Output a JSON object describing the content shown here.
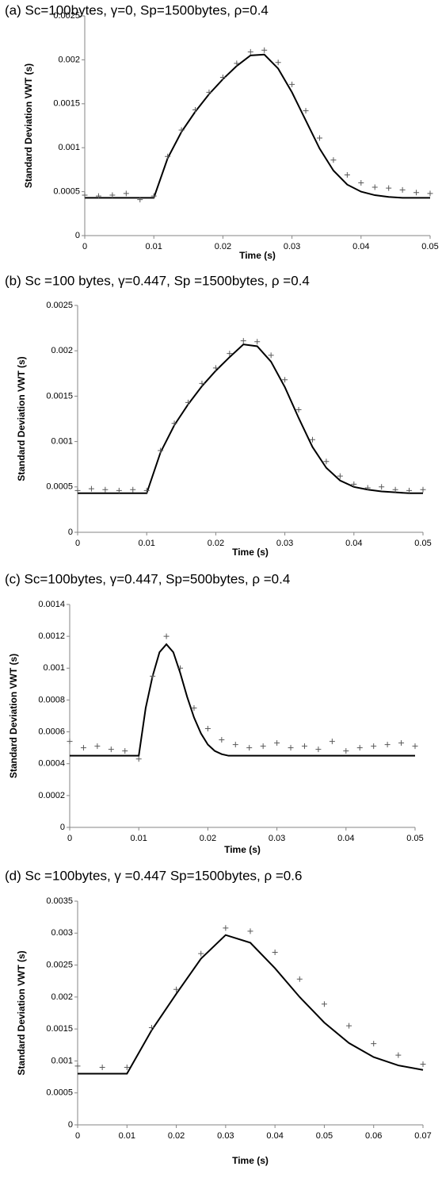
{
  "chart_data": [
    {
      "type": "line",
      "title": "(a)    Sc=100bytes, γ=0, Sp=1500bytes, ρ=0.4",
      "x_label": "Time (s)",
      "y_label": "Standard Deviation VWT (s)",
      "xlim": [
        0,
        0.05
      ],
      "xticks": [
        0,
        0.01,
        0.02,
        0.03,
        0.04,
        0.05
      ],
      "ylim": [
        0,
        0.0025
      ],
      "yticks": [
        0,
        0.0005,
        0.001,
        0.0015,
        0.002,
        0.0025
      ],
      "series": [
        {
          "style": "line",
          "color": "#000000",
          "x": [
            0,
            0.002,
            0.004,
            0.006,
            0.008,
            0.01,
            0.012,
            0.014,
            0.016,
            0.018,
            0.02,
            0.022,
            0.024,
            0.026,
            0.028,
            0.03,
            0.032,
            0.034,
            0.036,
            0.038,
            0.04,
            0.042,
            0.044,
            0.046,
            0.048,
            0.05
          ],
          "values": [
            0.00043,
            0.00043,
            0.00043,
            0.00043,
            0.00043,
            0.00043,
            0.00088,
            0.00118,
            0.00141,
            0.00161,
            0.00178,
            0.00193,
            0.00205,
            0.00206,
            0.0019,
            0.00163,
            0.00131,
            0.00099,
            0.00074,
            0.00058,
            0.0005,
            0.00046,
            0.00044,
            0.00043,
            0.00043,
            0.00043
          ]
        },
        {
          "style": "marker",
          "color": "#595959",
          "x": [
            0,
            0.002,
            0.004,
            0.006,
            0.008,
            0.01,
            0.012,
            0.014,
            0.016,
            0.018,
            0.02,
            0.022,
            0.024,
            0.026,
            0.028,
            0.03,
            0.032,
            0.034,
            0.036,
            0.038,
            0.04,
            0.042,
            0.044,
            0.046,
            0.048,
            0.05
          ],
          "values": [
            0.00046,
            0.00045,
            0.00046,
            0.00048,
            0.00041,
            0.00045,
            0.0009,
            0.0012,
            0.00143,
            0.00163,
            0.0018,
            0.00196,
            0.00209,
            0.00211,
            0.00197,
            0.00172,
            0.00142,
            0.00111,
            0.00086,
            0.00069,
            0.0006,
            0.00055,
            0.00054,
            0.00052,
            0.00049,
            0.00048
          ]
        }
      ]
    },
    {
      "type": "line",
      "title": "(b)    Sc =100 bytes, γ=0.447, Sp =1500bytes, ρ =0.4",
      "x_label": "Time (s)",
      "y_label": "Standard Deviation VWT (s)",
      "xlim": [
        0,
        0.05
      ],
      "xticks": [
        0,
        0.01,
        0.02,
        0.03,
        0.04,
        0.05
      ],
      "ylim": [
        0,
        0.0025
      ],
      "yticks": [
        0,
        0.0005,
        0.001,
        0.0015,
        0.002,
        0.0025
      ],
      "series": [
        {
          "style": "line",
          "color": "#000000",
          "x": [
            0,
            0.002,
            0.004,
            0.006,
            0.008,
            0.01,
            0.012,
            0.014,
            0.016,
            0.018,
            0.02,
            0.022,
            0.024,
            0.026,
            0.028,
            0.03,
            0.032,
            0.034,
            0.036,
            0.038,
            0.04,
            0.042,
            0.044,
            0.046,
            0.048,
            0.05
          ],
          "values": [
            0.00043,
            0.00043,
            0.00043,
            0.00043,
            0.00043,
            0.00043,
            0.00088,
            0.00118,
            0.00141,
            0.00161,
            0.00178,
            0.00193,
            0.00207,
            0.00205,
            0.00188,
            0.0016,
            0.00126,
            0.00094,
            0.00071,
            0.00057,
            0.0005,
            0.00047,
            0.00045,
            0.00044,
            0.00043,
            0.00043
          ]
        },
        {
          "style": "marker",
          "color": "#595959",
          "x": [
            0,
            0.002,
            0.004,
            0.006,
            0.008,
            0.01,
            0.012,
            0.014,
            0.016,
            0.018,
            0.02,
            0.022,
            0.024,
            0.026,
            0.028,
            0.03,
            0.032,
            0.034,
            0.036,
            0.038,
            0.04,
            0.042,
            0.044,
            0.046,
            0.048,
            0.05
          ],
          "values": [
            0.00046,
            0.00048,
            0.00047,
            0.00046,
            0.00047,
            0.00046,
            0.0009,
            0.0012,
            0.00143,
            0.00164,
            0.00181,
            0.00197,
            0.00211,
            0.0021,
            0.00195,
            0.00168,
            0.00135,
            0.00102,
            0.00078,
            0.00062,
            0.00053,
            0.00049,
            0.0005,
            0.00047,
            0.00046,
            0.00047
          ]
        }
      ]
    },
    {
      "type": "line",
      "title": "(c)    Sc=100bytes, γ=0.447, Sp=500bytes, ρ =0.4",
      "x_label": "Time (s)",
      "y_label": "Standard Deviation VWT (s)",
      "xlim": [
        0,
        0.05
      ],
      "xticks": [
        0,
        0.01,
        0.02,
        0.03,
        0.04,
        0.05
      ],
      "ylim": [
        0,
        0.0014
      ],
      "yticks": [
        0,
        0.0002,
        0.0004,
        0.0006,
        0.0008,
        0.001,
        0.0012,
        0.0014
      ],
      "series": [
        {
          "style": "line",
          "color": "#000000",
          "x": [
            0,
            0.005,
            0.01,
            0.011,
            0.012,
            0.013,
            0.014,
            0.015,
            0.016,
            0.017,
            0.018,
            0.019,
            0.02,
            0.021,
            0.022,
            0.023,
            0.025,
            0.03,
            0.04,
            0.05
          ],
          "values": [
            0.00045,
            0.00045,
            0.00045,
            0.00075,
            0.00095,
            0.0011,
            0.00115,
            0.0011,
            0.00097,
            0.00082,
            0.00069,
            0.00059,
            0.00052,
            0.00048,
            0.00046,
            0.00045,
            0.00045,
            0.00045,
            0.00045,
            0.00045
          ]
        },
        {
          "style": "marker",
          "color": "#595959",
          "x": [
            0,
            0.002,
            0.004,
            0.006,
            0.008,
            0.01,
            0.012,
            0.014,
            0.016,
            0.018,
            0.02,
            0.022,
            0.024,
            0.026,
            0.028,
            0.03,
            0.032,
            0.034,
            0.036,
            0.038,
            0.04,
            0.042,
            0.044,
            0.046,
            0.048,
            0.05
          ],
          "values": [
            0.00054,
            0.0005,
            0.00051,
            0.00049,
            0.00048,
            0.00043,
            0.00095,
            0.0012,
            0.001,
            0.00075,
            0.00062,
            0.00055,
            0.00052,
            0.0005,
            0.00051,
            0.00053,
            0.0005,
            0.00051,
            0.00049,
            0.00054,
            0.00048,
            0.0005,
            0.00051,
            0.00052,
            0.00053,
            0.00051
          ]
        }
      ]
    },
    {
      "type": "line",
      "title": "(d)    Sc =100bytes, γ =0.447 Sp=1500bytes, ρ =0.6",
      "x_label": "Time (s)",
      "y_label": "Standard Deviation VWT (s)",
      "xlim": [
        0,
        0.07
      ],
      "xticks": [
        0,
        0.01,
        0.02,
        0.03,
        0.04,
        0.05,
        0.06,
        0.07
      ],
      "ylim": [
        0,
        0.0035
      ],
      "yticks": [
        0,
        0.0005,
        0.001,
        0.0015,
        0.002,
        0.0025,
        0.003,
        0.0035
      ],
      "series": [
        {
          "style": "line",
          "color": "#000000",
          "x": [
            0,
            0.005,
            0.01,
            0.015,
            0.02,
            0.025,
            0.03,
            0.035,
            0.04,
            0.045,
            0.05,
            0.055,
            0.06,
            0.065,
            0.07
          ],
          "values": [
            0.0008,
            0.0008,
            0.0008,
            0.00148,
            0.00205,
            0.0026,
            0.00297,
            0.00285,
            0.00245,
            0.002,
            0.0016,
            0.00128,
            0.00106,
            0.00093,
            0.00086
          ]
        },
        {
          "style": "marker",
          "color": "#595959",
          "x": [
            0,
            0.005,
            0.01,
            0.015,
            0.02,
            0.025,
            0.03,
            0.035,
            0.04,
            0.045,
            0.05,
            0.055,
            0.06,
            0.065,
            0.07
          ],
          "values": [
            0.00092,
            0.0009,
            0.0009,
            0.00152,
            0.00212,
            0.00268,
            0.00308,
            0.00303,
            0.0027,
            0.00228,
            0.00189,
            0.00155,
            0.00127,
            0.00109,
            0.00095
          ]
        }
      ]
    }
  ]
}
